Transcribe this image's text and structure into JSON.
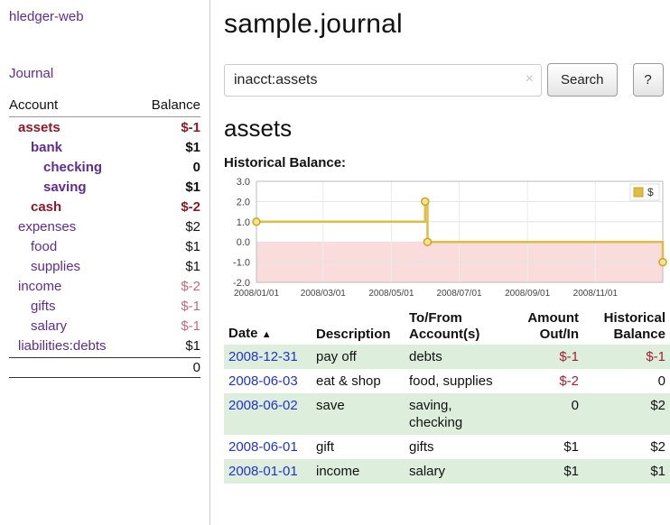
{
  "brand": "hledger-web",
  "sidebar": {
    "journal_link": "Journal",
    "header": {
      "account": "Account",
      "balance": "Balance"
    },
    "accounts": [
      {
        "name": "assets",
        "balance": "$-1"
      },
      {
        "name": "bank",
        "balance": "$1"
      },
      {
        "name": "checking",
        "balance": "0"
      },
      {
        "name": "saving",
        "balance": "$1"
      },
      {
        "name": "cash",
        "balance": "$-2"
      },
      {
        "name": "expenses",
        "balance": "$2"
      },
      {
        "name": "food",
        "balance": "$1"
      },
      {
        "name": "supplies",
        "balance": "$1"
      },
      {
        "name": "income",
        "balance": "$-2"
      },
      {
        "name": "gifts",
        "balance": "$-1"
      },
      {
        "name": "salary",
        "balance": "$-1"
      },
      {
        "name": "liabilities:debts",
        "balance": "$1"
      }
    ],
    "total": "0"
  },
  "header": {
    "title": "sample.journal"
  },
  "search": {
    "value": "inacct:assets",
    "clear": "×",
    "button": "Search",
    "help": "?"
  },
  "account_page": {
    "title": "assets",
    "chart_title": "Historical Balance:"
  },
  "chart_data": {
    "type": "line",
    "title": "Historical Balance",
    "step": true,
    "ylim": [
      -2,
      3
    ],
    "yticks": [
      3.0,
      2.0,
      1.0,
      0.0,
      -1.0,
      -2.0
    ],
    "xticks": [
      {
        "x": 0.0,
        "label": "2008/01/01"
      },
      {
        "x": 0.164,
        "label": "2008/03/01"
      },
      {
        "x": 0.332,
        "label": "2008/05/01"
      },
      {
        "x": 0.499,
        "label": "2008/07/01"
      },
      {
        "x": 0.667,
        "label": "2008/09/01"
      },
      {
        "x": 0.834,
        "label": "2008/11/01"
      }
    ],
    "series": [
      {
        "name": "$",
        "points": [
          {
            "date": "2008-01-01",
            "x": 0.0,
            "y": 1
          },
          {
            "date": "2008-06-01",
            "x": 0.415,
            "y": 2
          },
          {
            "date": "2008-06-03",
            "x": 0.421,
            "y": 0
          },
          {
            "date": "2008-12-31",
            "x": 1.0,
            "y": -1
          }
        ]
      }
    ],
    "legend_position": "top-right",
    "line_color": "#e0bc45",
    "marker_fill": "#f8e38a",
    "marker_stroke": "#c9a22b",
    "negative_region_color": "#fbdcdc"
  },
  "register": {
    "columns": {
      "date": "Date",
      "sort": "▲",
      "description": "Description",
      "account": "To/From Account(s)",
      "amount": "Amount Out/In",
      "balance": "Historical Balance"
    },
    "rows": [
      {
        "date": "2008-12-31",
        "description": "pay off",
        "account": "debts",
        "amount": "$-1",
        "balance": "$-1"
      },
      {
        "date": "2008-06-03",
        "description": "eat & shop",
        "account": "food, supplies",
        "amount": "$-2",
        "balance": "0"
      },
      {
        "date": "2008-06-02",
        "description": "save",
        "account": "saving, checking",
        "amount": "0",
        "balance": "$2"
      },
      {
        "date": "2008-06-01",
        "description": "gift",
        "account": "gifts",
        "amount": "$1",
        "balance": "$2"
      },
      {
        "date": "2008-01-01",
        "description": "income",
        "account": "salary",
        "amount": "$1",
        "balance": "$1"
      }
    ]
  },
  "colors": {
    "link_purple": "#5f2c91",
    "link_blue": "#2233cc",
    "negative_strong": "#8b1a2b",
    "negative_soft": "#c46a7a",
    "negative_register": "#a82030",
    "row_green": "#ddeedd",
    "chart_line": "#e0bc45",
    "chart_negative_region": "#fbdcdc"
  }
}
